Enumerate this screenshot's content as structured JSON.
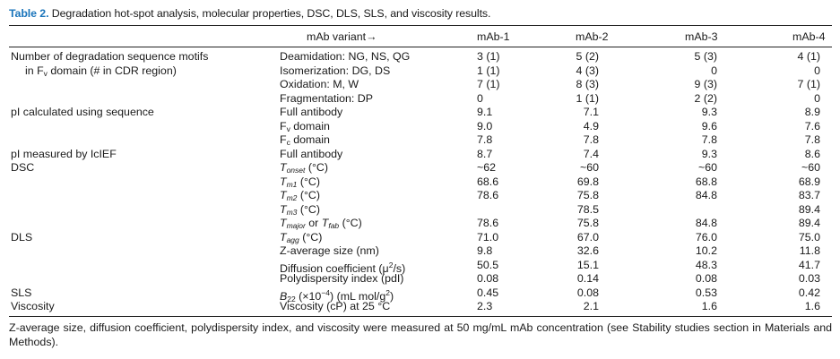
{
  "caption": {
    "label": "Table 2.",
    "text": "Degradation hot-spot analysis, molecular properties, DSC, DLS, SLS, and viscosity results."
  },
  "header": {
    "variant": "mAb variant→",
    "mab1": "mAb-1",
    "mab2": "mAb-2",
    "mab3": "mAb-3",
    "mab4": "mAb-4"
  },
  "rows": [
    {
      "group": "Number of degradation sequence motifs",
      "prop": "Deamidation: NG, NS, QG",
      "m1": "3 (1)",
      "m2": "5 (2)",
      "m3": "5 (3)",
      "m4": "4 (1)"
    },
    {
      "group_a": "in F",
      "group_sub": "v",
      "group_b": " domain (# in CDR region)",
      "prop": "Isomerization: DG, DS",
      "m1": "1 (1)",
      "m2": "4 (3)",
      "m3": "0",
      "m4": "0"
    },
    {
      "prop": "Oxidation: M, W",
      "m1": "7 (1)",
      "m2": "8 (3)",
      "m3": "9 (3)",
      "m4": "7 (1)"
    },
    {
      "prop": "Fragmentation: DP",
      "m1": "0",
      "m2": "1 (1)",
      "m3": "2 (2)",
      "m4": "0"
    },
    {
      "group": "pI calculated using sequence",
      "prop": "Full antibody",
      "m1": "9.1",
      "m2": "7.1",
      "m3": "9.3",
      "m4": "8.9"
    },
    {
      "prop_a": "F",
      "prop_sub": "v",
      "prop_b": " domain",
      "m1": "9.0",
      "m2": "4.9",
      "m3": "9.6",
      "m4": "7.6"
    },
    {
      "prop_a": "F",
      "prop_sub": "c",
      "prop_b": " domain",
      "m1": "7.8",
      "m2": "7.8",
      "m3": "7.8",
      "m4": "7.8"
    },
    {
      "group": "pI measured by IcIEF",
      "prop": "Full antibody",
      "m1": "8.7",
      "m2": "7.4",
      "m3": "9.3",
      "m4": "8.6"
    },
    {
      "group": "DSC",
      "prop_a": "T",
      "prop_sub": "onset",
      "prop_b": " (°C)",
      "m1": "~62",
      "m2": "~60",
      "m3": "~60",
      "m4": "~60"
    },
    {
      "prop_a": "T",
      "prop_sub": "m1",
      "prop_b": " (°C)",
      "m1": "68.6",
      "m2": "69.8",
      "m3": "68.8",
      "m4": "68.9"
    },
    {
      "prop_a": "T",
      "prop_sub": "m2",
      "prop_b": " (°C)",
      "m1": "78.6",
      "m2": "75.8",
      "m3": "84.8",
      "m4": "83.7"
    },
    {
      "prop_a": "T",
      "prop_sub": "m3",
      "prop_b": " (°C)",
      "m1": "",
      "m2": "78.5",
      "m3": "",
      "m4": "89.4"
    },
    {
      "prop_a": "T",
      "prop_sub": "major",
      "prop_or": " or ",
      "prop_a2": "T",
      "prop_sub2": "fab",
      "prop_b": " (°C)",
      "m1": "78.6",
      "m2": "75.8",
      "m3": "84.8",
      "m4": "89.4"
    },
    {
      "group": "DLS",
      "prop_a": "T",
      "prop_sub": "agg",
      "prop_b": " (°C)",
      "m1": "71.0",
      "m2": "67.0",
      "m3": "76.0",
      "m4": "75.0"
    },
    {
      "prop": "Z-average size (nm)",
      "m1": "9.8",
      "m2": "32.6",
      "m3": "10.2",
      "m4": "11.8"
    },
    {
      "prop_a": "Diffusion coefficient (μ",
      "prop_sup": "2",
      "prop_b": "/s)",
      "m1": "50.5",
      "m2": "15.1",
      "m3": "48.3",
      "m4": "41.7"
    },
    {
      "prop": "Polydispersity index (pdI)",
      "m1": "0.08",
      "m2": "0.14",
      "m3": "0.08",
      "m4": "0.03"
    },
    {
      "group": "SLS",
      "prop_a": "B",
      "prop_sub": "22",
      "prop_mid": " (×10",
      "prop_sup": "−4",
      "prop_b": ") (mL mol/g",
      "prop_sup2": "2",
      "prop_c": ")",
      "m1": "0.45",
      "m2": "0.08",
      "m3": "0.53",
      "m4": "0.42"
    },
    {
      "group": "Viscosity",
      "prop": "Viscosity (cP) at 25 °C",
      "m1": "2.3",
      "m2": "2.1",
      "m3": "1.6",
      "m4": "1.6"
    }
  ],
  "footnote": "Z-average size, diffusion coefficient, polydispersity index, and viscosity were measured at 50 mg/mL mAb concentration (see Stability studies section in Materials and Methods)."
}
